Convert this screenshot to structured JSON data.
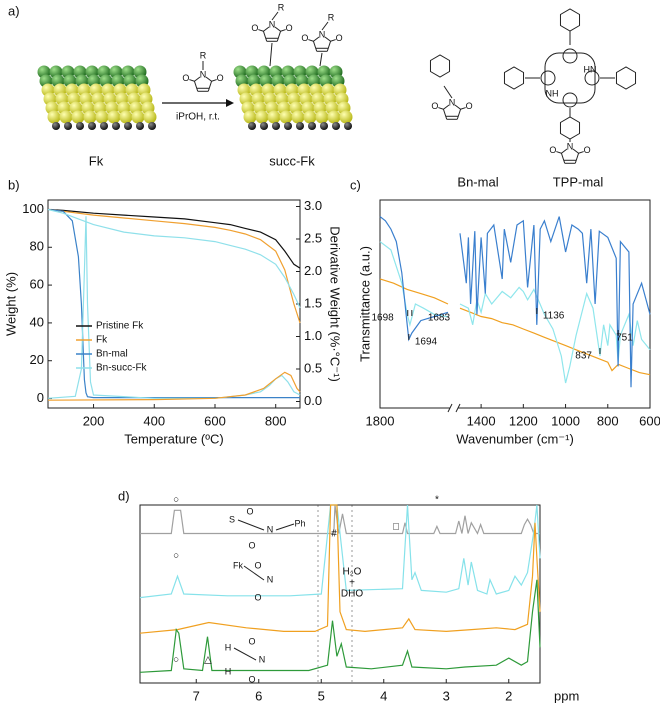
{
  "panel_labels": [
    "a)",
    "b)",
    "c)",
    "d)"
  ],
  "scheme": {
    "substrate": "Fk",
    "product": "succ-Fk",
    "conditions": "iPrOH, r.t.",
    "compounds": [
      "Bn-mal",
      "TPP-mal"
    ],
    "atoms": [
      "R",
      "N",
      "O",
      "O",
      "R",
      "N",
      "O",
      "O",
      "R",
      "N",
      "O",
      "O",
      "N",
      "O",
      "O",
      "HN",
      "NH",
      "N",
      "O",
      "O"
    ]
  },
  "chart_data": [
    {
      "type": "line",
      "xlabel": "Temperature (ºC)",
      "ylabel": "Weight (%)",
      "y2label": "Derivative Weight (%·°C⁻¹)",
      "xlim": [
        50,
        880
      ],
      "xticks": [
        200,
        400,
        600,
        800
      ],
      "ylim": [
        -5,
        105
      ],
      "yticks": [
        0,
        20,
        40,
        60,
        80,
        100
      ],
      "y2lim": [
        -0.1,
        3.1
      ],
      "y2ticks": [
        {
          "value": 0,
          "label": "0.0"
        },
        0.5,
        {
          "value": 1,
          "label": "1.0"
        },
        1.5,
        {
          "value": 2,
          "label": "2.0"
        },
        2.5,
        {
          "value": 3,
          "label": "3.0"
        }
      ],
      "legend": "lower left",
      "series": [
        {
          "name": "Pristine Fk",
          "color": "#111111",
          "x": [
            50,
            100,
            200,
            300,
            400,
            500,
            600,
            650,
            700,
            750,
            800,
            830,
            860,
            880
          ],
          "values": [
            100,
            99.5,
            98,
            97,
            96,
            95,
            93,
            92,
            90,
            88,
            84,
            78,
            71,
            69
          ]
        },
        {
          "name": "Fk",
          "color": "#f0a030",
          "x": [
            50,
            100,
            200,
            300,
            400,
            500,
            600,
            650,
            700,
            750,
            800,
            830,
            860,
            880
          ],
          "values": [
            100,
            99,
            97,
            95.5,
            94,
            92.5,
            90.5,
            89,
            87,
            84,
            78,
            68,
            50,
            40
          ]
        },
        {
          "name": "Bn-mal",
          "color": "#3b82c8",
          "x": [
            50,
            100,
            130,
            150,
            160,
            165,
            170,
            175,
            180,
            200,
            400,
            600,
            800,
            880
          ],
          "values": [
            100,
            99,
            94,
            75,
            50,
            30,
            10,
            3,
            1,
            0.5,
            0.5,
            0.5,
            0.5,
            0.5
          ]
        },
        {
          "name": "Bn-succ-Fk",
          "color": "#8fe0ea",
          "x": [
            50,
            100,
            150,
            200,
            300,
            400,
            500,
            600,
            650,
            700,
            750,
            800,
            830,
            860,
            880
          ],
          "values": [
            100,
            98,
            95,
            92,
            88,
            86,
            85,
            83,
            81,
            79,
            76,
            71,
            64,
            55,
            48
          ]
        },
        {
          "name": "Bn-succ-Fk",
          "color": "#8fe0ea",
          "axis": "y2",
          "x": [
            50,
            140,
            160,
            170,
            175,
            180,
            190,
            200,
            400,
            600,
            700,
            750,
            780,
            800,
            820,
            840,
            860,
            880
          ],
          "values": [
            0.05,
            0.08,
            0.5,
            2.0,
            2.85,
            1.5,
            0.3,
            0.1,
            0.05,
            0.05,
            0.1,
            0.15,
            0.25,
            0.35,
            0.4,
            0.3,
            0.15,
            0.1
          ]
        },
        {
          "name": "Fk",
          "color": "#f0a030",
          "axis": "y2",
          "x": [
            50,
            400,
            600,
            700,
            760,
            800,
            830,
            850,
            870,
            880
          ],
          "values": [
            0.02,
            0.03,
            0.05,
            0.1,
            0.2,
            0.35,
            0.45,
            0.4,
            0.2,
            0.15
          ]
        }
      ]
    },
    {
      "type": "line",
      "xlabel": "Wavenumber (cm⁻¹)",
      "ylabel": "Transmittance (a.u.)",
      "xlim": [
        1800,
        600
      ],
      "axis_break": [
        1550,
        1500
      ],
      "xticks": [
        1800,
        1400,
        1200,
        1000,
        800,
        600
      ],
      "ylim": [
        0,
        100
      ],
      "annotations": [
        1698,
        1683,
        1694,
        1136,
        837,
        751
      ],
      "series": [
        {
          "color": "#f0a020",
          "x": [
            1800,
            1750,
            1700,
            1650,
            1600,
            1550,
            1525,
            1500,
            1450,
            1400,
            1350,
            1300,
            1250,
            1200,
            1150,
            1100,
            1050,
            1000,
            950,
            900,
            850,
            800,
            780,
            750,
            700,
            650,
            600
          ],
          "values": [
            62,
            60,
            57,
            55,
            53,
            50,
            null,
            48,
            46,
            44,
            43,
            41,
            40,
            38,
            36,
            34,
            32,
            30,
            28,
            26,
            24,
            22,
            18,
            21,
            19,
            17,
            16
          ]
        },
        {
          "color": "#8fe6ec",
          "x": [
            1800,
            1760,
            1720,
            1700,
            1690,
            1670,
            1640,
            1600,
            1560,
            1550,
            1525,
            1500,
            1460,
            1440,
            1420,
            1400,
            1380,
            1350,
            1300,
            1260,
            1220,
            1200,
            1180,
            1150,
            1100,
            1060,
            1020,
            1000,
            980,
            950,
            900,
            870,
            837,
            820,
            800,
            790,
            760,
            751,
            740,
            700,
            680,
            660,
            640,
            600
          ],
          "values": [
            80,
            76,
            60,
            45,
            40,
            50,
            48,
            45,
            44,
            44,
            null,
            50,
            48,
            40,
            52,
            46,
            55,
            50,
            56,
            53,
            58,
            56,
            52,
            57,
            45,
            38,
            25,
            12,
            20,
            35,
            55,
            48,
            25,
            40,
            30,
            40,
            35,
            22,
            35,
            45,
            30,
            42,
            33,
            28
          ]
        },
        {
          "color": "#3a7fce",
          "x": [
            1800,
            1780,
            1760,
            1740,
            1720,
            1700,
            1694,
            1683,
            1650,
            1600,
            1550,
            1525,
            1500,
            1470,
            1460,
            1450,
            1430,
            1420,
            1400,
            1380,
            1370,
            1340,
            1300,
            1290,
            1260,
            1230,
            1200,
            1180,
            1150,
            1136,
            1120,
            1100,
            1070,
            1030,
            1000,
            970,
            940,
            920,
            900,
            880,
            860,
            840,
            800,
            760,
            751,
            740,
            700,
            690,
            680,
            640,
            600
          ],
          "values": [
            92,
            90,
            86,
            80,
            65,
            40,
            33,
            36,
            42,
            44,
            46,
            null,
            84,
            60,
            82,
            50,
            85,
            45,
            82,
            55,
            84,
            88,
            62,
            86,
            70,
            88,
            90,
            58,
            88,
            40,
            86,
            90,
            80,
            92,
            75,
            88,
            86,
            84,
            60,
            86,
            50,
            85,
            82,
            72,
            20,
            80,
            75,
            10,
            50,
            60,
            45
          ]
        }
      ]
    },
    {
      "type": "line",
      "xlabel": "ppm",
      "xlim": [
        7.9,
        1.5
      ],
      "xticks": [
        7,
        6,
        5,
        4,
        3,
        2
      ],
      "ylim": [
        0,
        100
      ],
      "annotations": [
        "#",
        "H₂O",
        "+",
        "DHO",
        "○",
        "○",
        "○",
        "△",
        "*",
        "□"
      ],
      "insets": [
        [
          "S",
          "N",
          "O",
          "O",
          "Ph"
        ],
        [
          "Fk",
          "N",
          "O",
          "O"
        ],
        [
          "H",
          "H",
          "N",
          "O",
          "O"
        ]
      ],
      "series": [
        {
          "color": "#a0a0a0",
          "x": [
            7.9,
            7.4,
            7.35,
            7.3,
            7.25,
            7.2,
            5.0,
            4.8,
            4.78,
            4.72,
            4.66,
            4.6,
            3.7,
            3.66,
            3.62,
            3.2,
            3.15,
            3.1,
            2.85,
            2.8,
            2.75,
            2.7,
            2.65,
            2.6,
            2.5,
            2.45,
            2.4,
            1.8,
            1.75,
            1.7,
            1.65,
            1.6,
            1.5
          ],
          "values": [
            84,
            84,
            97,
            97,
            97,
            84,
            84,
            84,
            100,
            84,
            95,
            84,
            84,
            90,
            84,
            84,
            88,
            84,
            84,
            91,
            84,
            94,
            84,
            90,
            84,
            89,
            84,
            84,
            89,
            92,
            89,
            84,
            84
          ]
        },
        {
          "color": "#86e2ea",
          "x": [
            7.9,
            7.4,
            7.3,
            7.2,
            6.5,
            5.5,
            5.0,
            4.85,
            4.8,
            4.75,
            4.6,
            3.7,
            3.62,
            3.55,
            3.5,
            3.4,
            3.0,
            2.8,
            2.72,
            2.65,
            2.6,
            2.5,
            2.35,
            2.3,
            2.2,
            2.0,
            1.9,
            1.8,
            1.7,
            1.6,
            1.55,
            1.5
          ],
          "values": [
            48,
            50,
            60,
            50,
            49,
            49,
            50,
            100,
            100,
            100,
            52,
            53,
            100,
            58,
            62,
            52,
            51,
            53,
            70,
            55,
            68,
            52,
            50,
            58,
            50,
            52,
            60,
            55,
            62,
            85,
            100,
            70
          ]
        },
        {
          "color": "#f0a020",
          "x": [
            7.9,
            7.3,
            6.8,
            6.2,
            5.6,
            5.1,
            4.9,
            4.85,
            4.8,
            4.75,
            4.7,
            4.6,
            4.3,
            3.7,
            3.6,
            3.5,
            3.0,
            2.6,
            2.2,
            1.9,
            1.7,
            1.62,
            1.58,
            1.55,
            1.5
          ],
          "values": [
            28,
            30,
            34,
            31,
            29,
            29,
            32,
            100,
            100,
            100,
            40,
            30,
            29,
            31,
            36,
            30,
            29,
            30,
            31,
            30,
            33,
            60,
            90,
            70,
            40
          ]
        },
        {
          "color": "#2e9a3a",
          "x": [
            7.9,
            7.4,
            7.32,
            7.28,
            7.2,
            6.9,
            6.82,
            6.75,
            6.0,
            5.2,
            4.9,
            4.82,
            4.75,
            4.68,
            4.6,
            4.2,
            3.7,
            3.62,
            3.55,
            3.0,
            2.7,
            2.2,
            2.0,
            1.8,
            1.7,
            1.62,
            1.55,
            1.5
          ],
          "values": [
            6,
            7,
            30,
            28,
            8,
            7,
            26,
            7,
            7,
            7,
            10,
            35,
            15,
            22,
            9,
            8,
            10,
            18,
            9,
            8,
            9,
            10,
            14,
            10,
            12,
            40,
            58,
            20
          ]
        }
      ]
    }
  ]
}
